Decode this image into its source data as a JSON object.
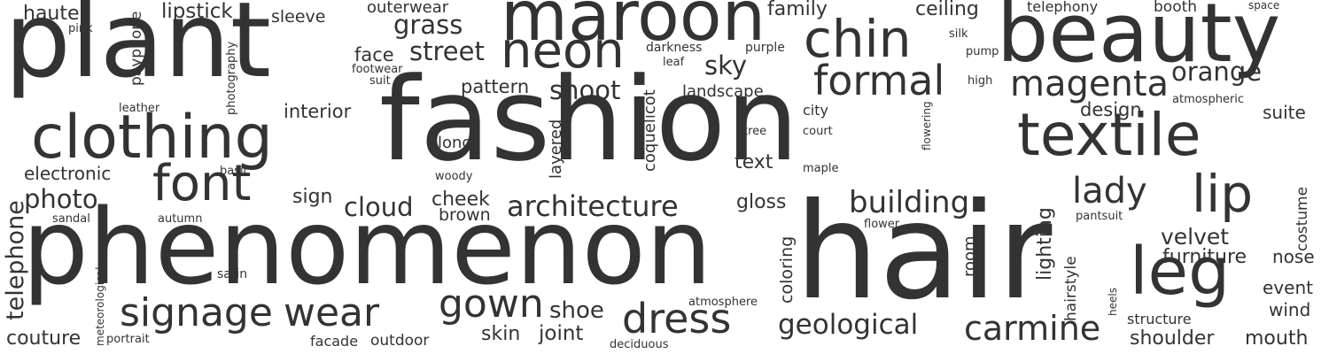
{
  "word_color": "#333333",
  "background_color": "#ffffff",
  "words": [
    {
      "text": "fashion"
    },
    {
      "text": "hair"
    },
    {
      "text": "phenomenon"
    },
    {
      "text": "plant"
    },
    {
      "text": "beauty"
    },
    {
      "text": "maroon"
    },
    {
      "text": "clothing"
    },
    {
      "text": "textile"
    },
    {
      "text": "chin"
    },
    {
      "text": "leg"
    },
    {
      "text": "neon"
    },
    {
      "text": "lip"
    },
    {
      "text": "font"
    },
    {
      "text": "signage"
    },
    {
      "text": "wear"
    },
    {
      "text": "dress"
    },
    {
      "text": "gown"
    },
    {
      "text": "formal"
    },
    {
      "text": "magenta"
    },
    {
      "text": "carmine"
    },
    {
      "text": "lady"
    },
    {
      "text": "architecture"
    },
    {
      "text": "building"
    },
    {
      "text": "geological"
    },
    {
      "text": "telephone"
    },
    {
      "text": "street"
    },
    {
      "text": "grass"
    },
    {
      "text": "orange"
    },
    {
      "text": "shoot"
    },
    {
      "text": "photo"
    },
    {
      "text": "sky"
    },
    {
      "text": "cloud"
    },
    {
      "text": "velvet"
    },
    {
      "text": "shoe"
    },
    {
      "text": "furniture"
    },
    {
      "text": "lipstick"
    },
    {
      "text": "haute"
    },
    {
      "text": "joint"
    },
    {
      "text": "coloring"
    },
    {
      "text": "lighting"
    },
    {
      "text": "couture"
    },
    {
      "text": "shoulder"
    },
    {
      "text": "mouth"
    },
    {
      "text": "skin"
    },
    {
      "text": "family"
    },
    {
      "text": "ceiling"
    },
    {
      "text": "pattern"
    },
    {
      "text": "face"
    },
    {
      "text": "interior"
    },
    {
      "text": "design"
    },
    {
      "text": "suite"
    },
    {
      "text": "event"
    },
    {
      "text": "wind"
    },
    {
      "text": "nose"
    },
    {
      "text": "electronic"
    },
    {
      "text": "text"
    },
    {
      "text": "cheek"
    },
    {
      "text": "gloss"
    },
    {
      "text": "brown"
    },
    {
      "text": "sign"
    },
    {
      "text": "sleeve"
    },
    {
      "text": "outerwear"
    },
    {
      "text": "room"
    },
    {
      "text": "costume"
    },
    {
      "text": "hairstyle"
    },
    {
      "text": "landscape"
    },
    {
      "text": "layered"
    },
    {
      "text": "coquelicot"
    },
    {
      "text": "payphone"
    },
    {
      "text": "long"
    },
    {
      "text": "city"
    },
    {
      "text": "structure"
    },
    {
      "text": "outdoor"
    },
    {
      "text": "facade"
    },
    {
      "text": "telephony"
    },
    {
      "text": "booth"
    },
    {
      "text": "photography"
    },
    {
      "text": "darkness"
    },
    {
      "text": "purple"
    },
    {
      "text": "silk"
    },
    {
      "text": "pump"
    },
    {
      "text": "high"
    },
    {
      "text": "atmospheric"
    },
    {
      "text": "flowering"
    },
    {
      "text": "court"
    },
    {
      "text": "tree"
    },
    {
      "text": "maple"
    },
    {
      "text": "flower"
    },
    {
      "text": "pantsuit"
    },
    {
      "text": "heels"
    },
    {
      "text": "atmosphere"
    },
    {
      "text": "satin"
    },
    {
      "text": "sandal"
    },
    {
      "text": "autumn"
    },
    {
      "text": "basic"
    },
    {
      "text": "woody"
    },
    {
      "text": "meteorological"
    },
    {
      "text": "portrait"
    },
    {
      "text": "deciduous"
    },
    {
      "text": "footwear"
    },
    {
      "text": "suit"
    },
    {
      "text": "leaf"
    },
    {
      "text": "leather"
    },
    {
      "text": "pink"
    },
    {
      "text": "space"
    }
  ]
}
